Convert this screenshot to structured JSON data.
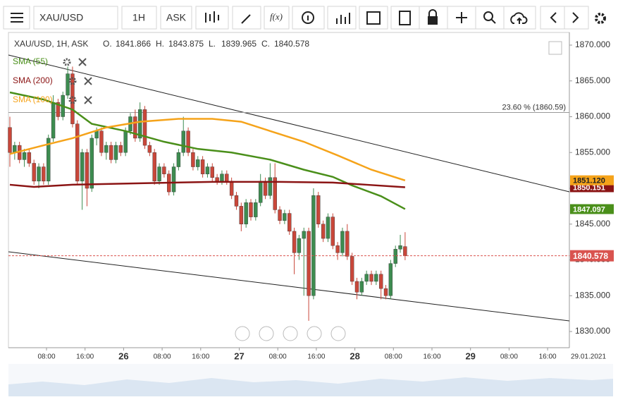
{
  "toolbar": {
    "symbol": "XAU/USD",
    "interval": "1H",
    "side": "ASK",
    "fx": "f(x)"
  },
  "header": {
    "symbol": "XAU/USD, 1H, ASK",
    "fields": [
      "O.",
      "H.",
      "L.",
      "C."
    ]
  },
  "chart_data": {
    "type": "candlestick",
    "ylim": [
      1827.74,
      1871.77
    ],
    "yticks": [
      {
        "value": 1830,
        "label": "1830.000"
      },
      {
        "value": 1835,
        "label": "1835.000"
      },
      {
        "value": 1840,
        "label": "1840.000"
      },
      {
        "value": 1845,
        "label": "1845.000"
      },
      {
        "value": 1850,
        "label": "1850.000"
      },
      {
        "value": 1855,
        "label": "1855.000"
      },
      {
        "value": 1860,
        "label": "1860.000"
      },
      {
        "value": 1865,
        "label": "1865.000"
      },
      {
        "value": 1870,
        "label": "1870.000"
      }
    ],
    "xlabels": [
      "08:00",
      "16:00",
      "26",
      "08:00",
      "16:00",
      "27",
      "08:00",
      "16:00",
      "28",
      "08:00",
      "16:00",
      "29",
      "08:00",
      "16:00"
    ],
    "x_corner_label": "29.01.2021",
    "up_color": "#3d8c50",
    "down_color": "#c9473a",
    "ohlc": [
      [
        1858.5,
        1860,
        1853,
        1855
      ],
      [
        1855,
        1856.5,
        1854,
        1856
      ],
      [
        1856,
        1856.5,
        1853.5,
        1854
      ],
      [
        1854,
        1855.5,
        1853,
        1855
      ],
      [
        1855,
        1855.5,
        1853,
        1853.5
      ],
      [
        1853.5,
        1854,
        1850.5,
        1851
      ],
      [
        1851,
        1853.5,
        1850,
        1853
      ],
      [
        1853,
        1853.5,
        1850.5,
        1851
      ],
      [
        1851,
        1857.5,
        1850.5,
        1857
      ],
      [
        1857,
        1863,
        1856.5,
        1862
      ],
      [
        1862,
        1862.5,
        1859.5,
        1860
      ],
      [
        1860,
        1863.5,
        1859.5,
        1863
      ],
      [
        1863,
        1867,
        1862.5,
        1866
      ],
      [
        1866,
        1867,
        1858.5,
        1859
      ],
      [
        1859,
        1859.5,
        1850.5,
        1851
      ],
      [
        1851,
        1855.5,
        1847,
        1855
      ],
      [
        1855,
        1855.5,
        1847.5,
        1850
      ],
      [
        1850,
        1857.5,
        1849.5,
        1857
      ],
      [
        1857,
        1858.5,
        1856,
        1858
      ],
      [
        1858,
        1858.5,
        1854.5,
        1855
      ],
      [
        1855,
        1856.5,
        1854,
        1856
      ],
      [
        1856,
        1856.5,
        1853.5,
        1854
      ],
      [
        1854,
        1856.5,
        1853.5,
        1856
      ],
      [
        1856,
        1856.5,
        1854.5,
        1855
      ],
      [
        1855,
        1858.5,
        1854.5,
        1858
      ],
      [
        1858,
        1860.5,
        1857.5,
        1860
      ],
      [
        1860,
        1861,
        1856.5,
        1857
      ],
      [
        1857,
        1862,
        1856.5,
        1861
      ],
      [
        1861,
        1861.5,
        1855.5,
        1856
      ],
      [
        1856,
        1856.5,
        1854.5,
        1855
      ],
      [
        1855,
        1855.5,
        1850.5,
        1851
      ],
      [
        1851,
        1853.5,
        1850.5,
        1853
      ],
      [
        1853,
        1853.5,
        1851.5,
        1852
      ],
      [
        1852,
        1852.5,
        1849,
        1849.5
      ],
      [
        1849.5,
        1853.5,
        1849,
        1853
      ],
      [
        1853,
        1855.5,
        1852.5,
        1855
      ],
      [
        1855,
        1860,
        1854.5,
        1858
      ],
      [
        1858,
        1858.5,
        1854.5,
        1855
      ],
      [
        1855,
        1855.5,
        1852.5,
        1853
      ],
      [
        1853,
        1854.5,
        1852.5,
        1854
      ],
      [
        1854,
        1854.5,
        1851.5,
        1852
      ],
      [
        1852,
        1853.5,
        1851.5,
        1853
      ],
      [
        1853,
        1853.5,
        1851,
        1851.5
      ],
      [
        1851.5,
        1852,
        1850.5,
        1851
      ],
      [
        1851,
        1852.5,
        1850.5,
        1852
      ],
      [
        1852,
        1852.5,
        1850.5,
        1851
      ],
      [
        1851,
        1851.5,
        1848.5,
        1849
      ],
      [
        1849,
        1849.5,
        1847,
        1847.5
      ],
      [
        1847.5,
        1848,
        1844,
        1845
      ],
      [
        1845,
        1848.5,
        1844.5,
        1848
      ],
      [
        1848,
        1848.5,
        1845.5,
        1846
      ],
      [
        1846,
        1848.5,
        1845.5,
        1848
      ],
      [
        1848,
        1852,
        1847.5,
        1851
      ],
      [
        1851,
        1851.5,
        1848.5,
        1849
      ],
      [
        1849,
        1853.5,
        1848.5,
        1851.5
      ],
      [
        1851.5,
        1853.5,
        1846.5,
        1847
      ],
      [
        1847,
        1847.5,
        1845,
        1845.5
      ],
      [
        1845.5,
        1847,
        1845,
        1846.5
      ],
      [
        1846.5,
        1847,
        1843.5,
        1844
      ],
      [
        1844,
        1844.5,
        1838,
        1841
      ],
      [
        1841,
        1843.5,
        1840,
        1843
      ],
      [
        1843,
        1844.5,
        1835,
        1844
      ],
      [
        1844,
        1844.5,
        1831.5,
        1835
      ],
      [
        1835,
        1850,
        1834.5,
        1849
      ],
      [
        1849,
        1849.5,
        1844.5,
        1845
      ],
      [
        1845,
        1845.5,
        1842.5,
        1843
      ],
      [
        1843,
        1846.5,
        1842.5,
        1846
      ],
      [
        1846,
        1846.5,
        1841.5,
        1842
      ],
      [
        1842,
        1842.5,
        1840,
        1841
      ],
      [
        1841,
        1844.5,
        1840.5,
        1844
      ],
      [
        1844,
        1845,
        1840,
        1840.5
      ],
      [
        1840.5,
        1841,
        1836.5,
        1837
      ],
      [
        1837,
        1837.5,
        1834.5,
        1835.5
      ],
      [
        1835.5,
        1837.5,
        1835,
        1837
      ],
      [
        1837,
        1838.5,
        1836.5,
        1838
      ],
      [
        1838,
        1838.5,
        1836.5,
        1837
      ],
      [
        1837,
        1838.5,
        1836.5,
        1838
      ],
      [
        1838,
        1838.5,
        1834.5,
        1836
      ],
      [
        1836,
        1836.5,
        1834.5,
        1835
      ],
      [
        1835,
        1840,
        1834.5,
        1839.5
      ],
      [
        1839.5,
        1842,
        1839,
        1841.5
      ],
      [
        1841.5,
        1843.5,
        1841,
        1842
      ],
      [
        1841.866,
        1843.875,
        1839.965,
        1840.578
      ]
    ],
    "series": [
      {
        "name": "SMA (55)",
        "color": "#4a8f1a",
        "x": [
          0,
          7,
          13,
          17,
          24,
          32,
          39,
          46,
          54,
          61,
          67,
          71,
          77,
          82
        ],
        "values": [
          1863.4,
          1862.4,
          1861,
          1859,
          1858,
          1856.5,
          1855.5,
          1855,
          1854,
          1852.6,
          1851.6,
          1850.4,
          1848.9,
          1847.1
        ],
        "tag": 1847.097
      },
      {
        "name": "SMA (200)",
        "color": "#8b1414",
        "x": [
          0,
          5,
          13,
          27,
          42,
          56,
          67,
          74,
          82
        ],
        "values": [
          1850.5,
          1850.2,
          1850.5,
          1850.7,
          1850.9,
          1850.9,
          1850.8,
          1850.5,
          1850.15
        ],
        "tag": 1850.151
      },
      {
        "name": "SMA (100)",
        "color": "#f5a31a",
        "x": [
          0,
          7,
          13,
          20,
          27,
          35,
          42,
          48,
          54,
          61,
          68,
          75,
          82
        ],
        "values": [
          1854.8,
          1856,
          1857,
          1858.5,
          1859.3,
          1859.7,
          1859.7,
          1859.3,
          1858,
          1856.5,
          1854.6,
          1852.6,
          1851.1
        ],
        "tag": {
          "value": 1851.12,
          "label": "1851.120"
        }
      }
    ],
    "fib_level": 1860.59,
    "fib_label": "23.60 % (1860.59)"
  }
}
